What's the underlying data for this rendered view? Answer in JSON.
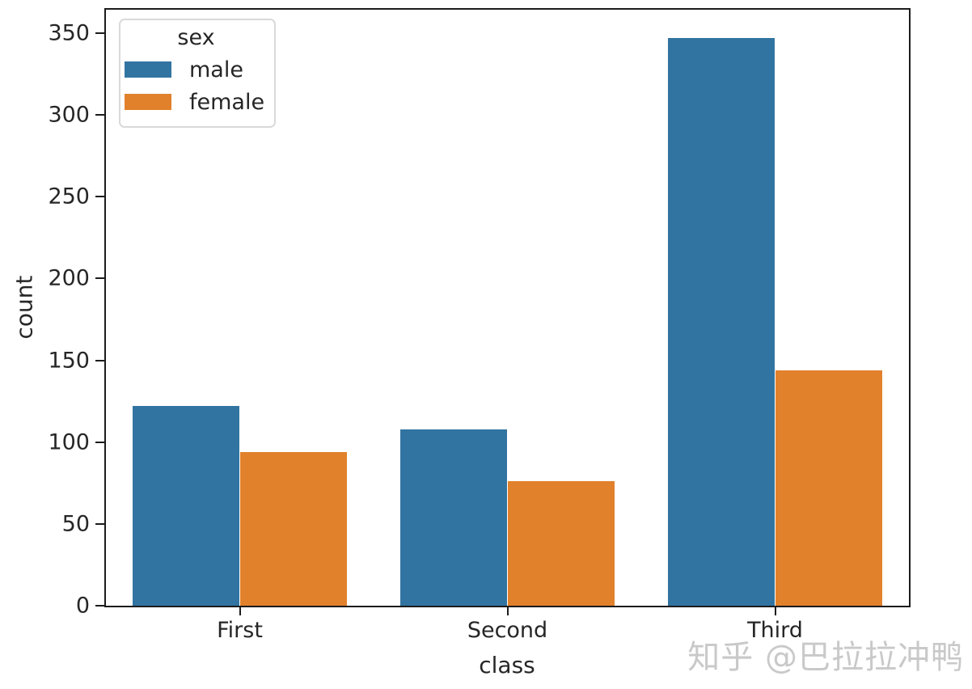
{
  "chart_data": {
    "type": "bar",
    "categories": [
      "First",
      "Second",
      "Third"
    ],
    "series": [
      {
        "name": "male",
        "values": [
          122,
          108,
          347
        ],
        "color": "#3274a1"
      },
      {
        "name": "female",
        "values": [
          94,
          76,
          144
        ],
        "color": "#e1812c"
      }
    ],
    "title": "",
    "xlabel": "class",
    "ylabel": "count",
    "ylim": [
      0,
      364.35
    ],
    "yticks": [
      0,
      50,
      100,
      150,
      200,
      250,
      300,
      350
    ],
    "grid": false,
    "legend": {
      "title": "sex",
      "position": "upper-left",
      "entries": [
        "male",
        "female"
      ]
    }
  },
  "watermark": {
    "text": "知乎 @巴拉拉冲鸭",
    "color": "#c9c9c9"
  },
  "colors": {
    "spine": "#1c1c1c",
    "text": "#262626",
    "legend_border": "#d9d9d9"
  }
}
